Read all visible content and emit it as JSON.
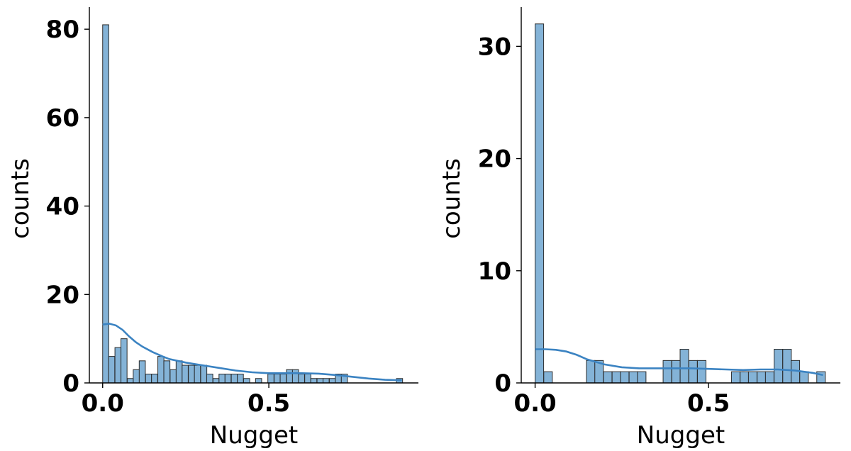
{
  "chart_data": [
    {
      "type": "bar",
      "subtype": "histogram_with_kde",
      "xlabel": "Nugget",
      "ylabel": "counts",
      "xlim": [
        -0.04,
        0.95
      ],
      "ylim": [
        0,
        85
      ],
      "xticks": [
        0.0,
        0.5
      ],
      "xtick_labels": [
        "0.0",
        "0.5"
      ],
      "yticks": [
        0,
        20,
        40,
        60,
        80
      ],
      "ytick_labels": [
        "0",
        "20",
        "40",
        "60",
        "80"
      ],
      "bin_width": 0.0184,
      "bins_x0": [
        0.0,
        0.018,
        0.037,
        0.055,
        0.074,
        0.092,
        0.11,
        0.129,
        0.147,
        0.166,
        0.184,
        0.203,
        0.221,
        0.239,
        0.258,
        0.276,
        0.295,
        0.313,
        0.332,
        0.35,
        0.368,
        0.387,
        0.405,
        0.424,
        0.442,
        0.46,
        0.479,
        0.497,
        0.516,
        0.534,
        0.553,
        0.571,
        0.589,
        0.608,
        0.626,
        0.645,
        0.663,
        0.682,
        0.7,
        0.718,
        0.737,
        0.755,
        0.774,
        0.792,
        0.811,
        0.829,
        0.847,
        0.866,
        0.884
      ],
      "counts": [
        81,
        6,
        8,
        10,
        1,
        3,
        5,
        2,
        2,
        6,
        5,
        3,
        5,
        4,
        4,
        4,
        4,
        2,
        1,
        2,
        2,
        2,
        2,
        1,
        0,
        1,
        0,
        2,
        2,
        2,
        3,
        3,
        2,
        2,
        1,
        1,
        1,
        1,
        2,
        2,
        0,
        0,
        0,
        0,
        0,
        0,
        0,
        0,
        1
      ],
      "kde_curve": {
        "x": [
          0.0,
          0.02,
          0.04,
          0.06,
          0.08,
          0.1,
          0.12,
          0.15,
          0.18,
          0.2,
          0.25,
          0.3,
          0.35,
          0.4,
          0.45,
          0.5,
          0.55,
          0.6,
          0.65,
          0.7,
          0.75,
          0.8,
          0.85,
          0.9
        ],
        "y": [
          13.2,
          13.4,
          13.0,
          12.0,
          10.5,
          9.2,
          8.2,
          7.0,
          6.0,
          5.4,
          4.6,
          4.0,
          3.4,
          2.8,
          2.4,
          2.2,
          2.2,
          2.2,
          2.1,
          1.8,
          1.4,
          1.0,
          0.7,
          0.6
        ]
      },
      "color": "#6fa6d0",
      "line_color": "#3b83c2"
    },
    {
      "type": "bar",
      "subtype": "histogram_with_kde",
      "xlabel": "Nugget",
      "ylabel": "counts",
      "xlim": [
        -0.04,
        0.88
      ],
      "ylim": [
        0,
        33.5
      ],
      "xticks": [
        0.0,
        0.5
      ],
      "xtick_labels": [
        "0.0",
        "0.5"
      ],
      "yticks": [
        0,
        10,
        20,
        30
      ],
      "ytick_labels": [
        "0",
        "10",
        "20",
        "30"
      ],
      "bin_width": 0.0246,
      "bins_x0": [
        0.0,
        0.025,
        0.049,
        0.074,
        0.098,
        0.123,
        0.148,
        0.172,
        0.197,
        0.222,
        0.246,
        0.271,
        0.295,
        0.32,
        0.345,
        0.369,
        0.394,
        0.418,
        0.443,
        0.468,
        0.492,
        0.517,
        0.541,
        0.566,
        0.591,
        0.615,
        0.64,
        0.664,
        0.689,
        0.714,
        0.738,
        0.763,
        0.787,
        0.812
      ],
      "counts": [
        32,
        1,
        0,
        0,
        0,
        0,
        2,
        2,
        1,
        1,
        1,
        1,
        1,
        0,
        0,
        2,
        2,
        3,
        2,
        2,
        0,
        0,
        0,
        1,
        1,
        1,
        1,
        1,
        3,
        3,
        2,
        1,
        0,
        1
      ],
      "kde_curve": {
        "x": [
          0.0,
          0.03,
          0.06,
          0.09,
          0.12,
          0.15,
          0.2,
          0.25,
          0.3,
          0.35,
          0.4,
          0.45,
          0.5,
          0.55,
          0.6,
          0.65,
          0.7,
          0.75,
          0.8,
          0.83
        ],
        "y": [
          3.0,
          3.0,
          2.95,
          2.8,
          2.5,
          2.1,
          1.65,
          1.4,
          1.3,
          1.3,
          1.3,
          1.3,
          1.25,
          1.2,
          1.15,
          1.2,
          1.2,
          1.1,
          0.9,
          0.7
        ]
      },
      "color": "#6fa6d0",
      "line_color": "#3b83c2"
    }
  ]
}
